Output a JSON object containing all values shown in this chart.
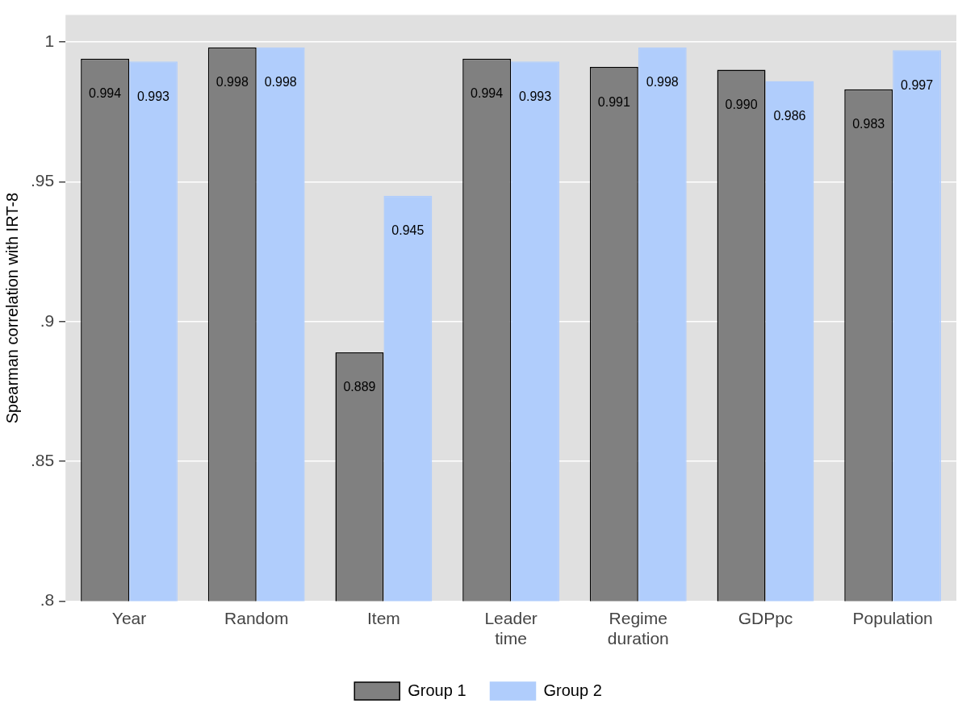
{
  "chart_data": {
    "type": "bar",
    "ylabel": "Spearman correlation with IRT-8",
    "categories": [
      "Year",
      "Random",
      "Item",
      "Leader time",
      "Regime duration",
      "GDPpc",
      "Population"
    ],
    "series": [
      {
        "name": "Group 1",
        "color": "#808080",
        "values": [
          0.994,
          0.998,
          0.889,
          0.994,
          0.991,
          0.99,
          0.983
        ],
        "value_labels": [
          "0.994",
          "0.998",
          "0.889",
          "0.994",
          "0.991",
          "0.990",
          "0.983"
        ]
      },
      {
        "name": "Group 2",
        "color": "#b0cdfc",
        "values": [
          0.993,
          0.998,
          0.945,
          0.993,
          0.998,
          0.986,
          0.997
        ],
        "value_labels": [
          "0.993",
          "0.998",
          "0.945",
          "0.993",
          "0.998",
          "0.986",
          "0.997"
        ]
      }
    ],
    "ylim": [
      0.8,
      1.0096
    ],
    "yticks": [
      {
        "value": 0.8,
        "label": ".8"
      },
      {
        "value": 0.85,
        "label": ".85"
      },
      {
        "value": 0.9,
        "label": ".9"
      },
      {
        "value": 0.95,
        "label": ".95"
      },
      1
    ],
    "grid": "y",
    "legend": "bottom"
  }
}
